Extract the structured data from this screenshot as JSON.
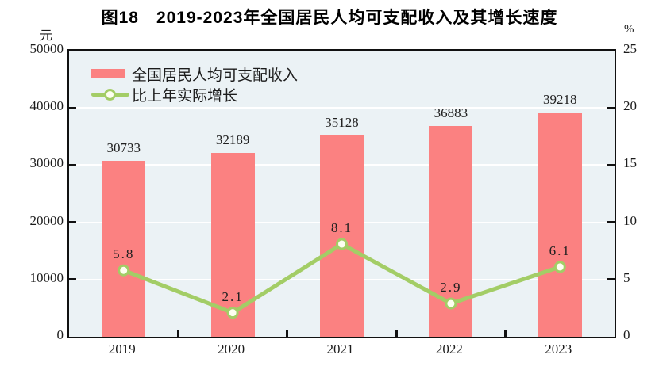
{
  "title": "图18　2019-2023年全国居民人均可支配收入及其增长速度",
  "chart_data": {
    "type": "bar",
    "subtype": "combo-bar-line",
    "title": "图18　2019-2023年全国居民人均可支配收入及其增长速度",
    "categories": [
      "2019",
      "2020",
      "2021",
      "2022",
      "2023"
    ],
    "series": [
      {
        "name": "全国居民人均可支配收入",
        "type": "bar",
        "axis": "left",
        "color": "#FB8181",
        "values": [
          30733,
          32189,
          35128,
          36883,
          39218
        ],
        "labels": [
          "30733",
          "32189",
          "35128",
          "36883",
          "39218"
        ]
      },
      {
        "name": "比上年实际增长",
        "type": "line",
        "axis": "right",
        "color": "#A3CD66",
        "marker_fill": "#FDFFF0",
        "values": [
          5.8,
          2.1,
          8.1,
          2.9,
          6.1
        ],
        "labels": [
          "5.8",
          "2.1",
          "8.1",
          "2.9",
          "6.1"
        ]
      }
    ],
    "left_axis": {
      "unit": "元",
      "min": 0,
      "max": 50000,
      "tick_step": 10000,
      "ticks": [
        "0",
        "10000",
        "20000",
        "30000",
        "40000",
        "50000"
      ]
    },
    "right_axis": {
      "unit": "%",
      "min": 0,
      "max": 25,
      "tick_step": 5,
      "ticks": [
        "0",
        "5",
        "10",
        "15",
        "20",
        "25"
      ]
    },
    "legend_position": "top-left-inside",
    "grid": true,
    "plot_bg": "#EBF2F5",
    "grid_color": "#FFFFFF",
    "frame_color": "#111111"
  }
}
